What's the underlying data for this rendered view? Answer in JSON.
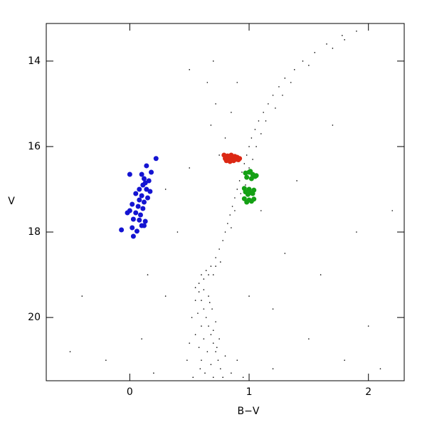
{
  "chart_data": {
    "type": "scatter",
    "x_label": "B−V",
    "y_label": "V",
    "xlim": [
      -0.7,
      2.3
    ],
    "ylim": [
      21.48,
      13.12
    ],
    "xticks": [
      0,
      1,
      2
    ],
    "yticks": [
      14,
      16,
      18,
      20
    ],
    "series": [
      {
        "color": "#000000",
        "size": 0.8,
        "x": [
          0.72,
          0.75,
          0.78,
          0.8,
          0.82,
          0.84,
          0.86,
          0.88,
          0.9,
          0.92,
          0.94,
          0.96,
          0.98,
          1.0,
          1.02,
          1.05,
          1.08,
          1.12,
          1.16,
          1.2,
          1.25,
          1.3,
          1.38,
          1.45,
          1.55,
          1.65,
          1.78,
          1.9,
          0.85,
          0.88,
          0.93,
          0.97,
          1.0,
          1.03,
          1.06,
          1.1,
          1.14,
          1.22,
          1.28,
          1.35,
          1.5,
          1.7,
          0.7,
          0.65,
          0.72,
          0.68,
          0.8,
          0.75,
          0.85,
          0.6,
          0.64,
          0.68,
          0.72,
          0.58,
          0.55,
          0.62,
          0.66,
          0.7,
          0.76,
          0.58,
          0.6,
          0.62,
          0.64,
          0.66,
          0.68,
          0.7,
          0.72,
          0.74,
          0.76,
          0.78,
          0.55,
          0.57,
          0.6,
          0.62,
          0.65,
          0.68,
          0.7,
          0.52,
          0.55,
          0.58,
          0.6,
          0.63,
          0.66,
          0.69,
          0.72,
          0.75,
          0.8,
          0.85,
          0.5,
          0.48,
          0.53,
          0.9,
          0.95,
          0.62,
          0.67,
          0.7,
          0.73,
          0.59,
          -0.2,
          0.1,
          0.3,
          0.2,
          1.2,
          1.5,
          1.8,
          2.0,
          1.3,
          1.6,
          1.1,
          1.4,
          0.4,
          0.3,
          0.5,
          1.9,
          2.2,
          1.7,
          0.9,
          0.5,
          -0.4,
          -0.5,
          0.15,
          1.0,
          1.2,
          2.1,
          1.8
        ],
        "values": [
          18.6,
          18.4,
          18.2,
          18.0,
          17.8,
          17.6,
          17.4,
          17.2,
          17.0,
          16.8,
          16.6,
          16.4,
          16.2,
          16.0,
          15.8,
          15.6,
          15.4,
          15.2,
          15.0,
          14.8,
          14.6,
          14.4,
          14.2,
          14.0,
          13.8,
          13.6,
          13.4,
          13.3,
          17.9,
          17.5,
          17.1,
          16.9,
          16.5,
          16.3,
          16.0,
          15.7,
          15.4,
          15.1,
          14.8,
          14.5,
          14.1,
          13.7,
          14.0,
          14.5,
          15.0,
          15.5,
          15.8,
          16.2,
          15.2,
          19.0,
          18.9,
          18.8,
          18.8,
          19.2,
          19.3,
          19.1,
          19.0,
          19.0,
          18.7,
          19.4,
          19.6,
          19.8,
          20.0,
          20.2,
          20.4,
          20.6,
          20.8,
          21.0,
          21.2,
          21.4,
          19.6,
          19.9,
          20.2,
          20.5,
          20.8,
          21.1,
          21.4,
          20.0,
          20.4,
          20.7,
          21.0,
          21.3,
          19.5,
          19.8,
          20.1,
          20.5,
          20.9,
          21.3,
          20.6,
          21.0,
          21.4,
          21.0,
          21.4,
          19.35,
          19.65,
          20.3,
          20.7,
          21.2,
          21.0,
          20.5,
          19.5,
          21.3,
          19.8,
          20.5,
          21.0,
          20.2,
          18.5,
          19.0,
          17.5,
          16.8,
          18.0,
          17.0,
          16.5,
          18.0,
          17.5,
          15.5,
          14.5,
          14.2,
          19.5,
          20.8,
          19.0,
          19.5,
          21.2,
          21.2,
          13.5
        ]
      },
      {
        "color": "#1414d2",
        "size": 3.5,
        "x": [
          0.22,
          0.14,
          0.0,
          0.1,
          0.18,
          0.12,
          0.16,
          0.13,
          0.11,
          0.08,
          0.14,
          0.17,
          0.05,
          0.1,
          0.15,
          0.08,
          0.12,
          0.02,
          0.07,
          0.11,
          0.0,
          0.05,
          -0.02,
          0.09,
          0.03,
          0.08,
          0.13,
          0.1,
          0.12,
          0.02,
          -0.07,
          0.06,
          0.03
        ],
        "values": [
          16.28,
          16.45,
          16.65,
          16.65,
          16.6,
          16.75,
          16.8,
          16.85,
          16.9,
          17.0,
          17.0,
          17.05,
          17.1,
          17.15,
          17.2,
          17.25,
          17.3,
          17.35,
          17.4,
          17.45,
          17.5,
          17.55,
          17.55,
          17.6,
          17.7,
          17.72,
          17.75,
          17.85,
          17.85,
          17.9,
          17.95,
          17.98,
          18.1
        ]
      },
      {
        "color": "#dc2814",
        "size": 3.5,
        "x": [
          0.79,
          0.82,
          0.85,
          0.88,
          0.9,
          0.8,
          0.83,
          0.86,
          0.89,
          0.92,
          0.81,
          0.84,
          0.87,
          0.91
        ],
        "values": [
          16.2,
          16.22,
          16.2,
          16.23,
          16.25,
          16.28,
          16.3,
          16.27,
          16.3,
          16.28,
          16.33,
          16.35,
          16.33,
          16.31
        ]
      },
      {
        "color": "#14a014",
        "size": 3.5,
        "x": [
          0.97,
          1.0,
          1.03,
          1.06,
          0.98,
          1.02,
          1.05,
          0.96,
          1.0,
          1.04,
          0.97,
          1.01,
          0.99,
          1.03,
          0.96,
          1.0,
          1.04,
          0.98,
          1.02,
          1.01
        ],
        "values": [
          16.62,
          16.6,
          16.65,
          16.68,
          16.72,
          16.75,
          16.7,
          16.98,
          17.0,
          17.02,
          17.06,
          17.08,
          17.12,
          17.1,
          17.22,
          17.25,
          17.23,
          17.3,
          17.28,
          16.58
        ]
      }
    ]
  }
}
